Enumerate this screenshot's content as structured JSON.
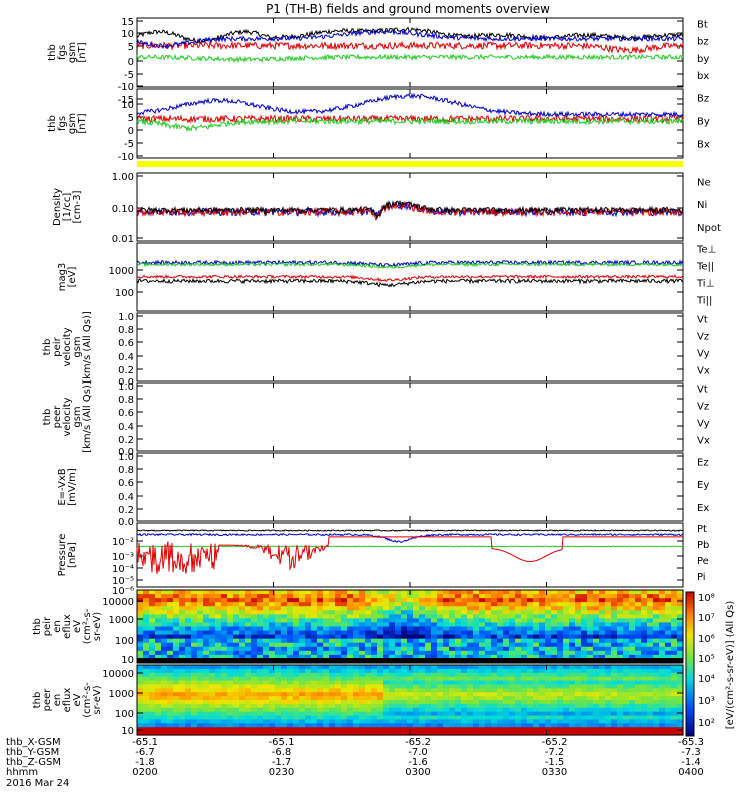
{
  "title": "P1 (TH-B) fields and ground moments overview",
  "colors": {
    "black": "#000000",
    "red": "#e00000",
    "green": "#22cc22",
    "blue": "#0000cc",
    "yellow": "#ffff00"
  },
  "chart_data": [
    {
      "type": "line",
      "id": "p1",
      "ylabel": [
        "thb",
        "fgs",
        "gsm",
        "[nT]"
      ],
      "yticks": [
        "15",
        "10",
        "5",
        "0",
        "-5",
        "-10",
        "-15"
      ],
      "ylim": [
        -15,
        15
      ],
      "legend": [
        {
          "text": "Bt",
          "color": "#000000"
        },
        {
          "text": "bz",
          "color": "#e00000"
        },
        {
          "text": "by",
          "color": "#22cc22"
        },
        {
          "text": "bx",
          "color": "#0000cc"
        }
      ]
    },
    {
      "type": "line",
      "id": "p2",
      "ylabel": [
        "thb",
        "fgs",
        "gsm",
        "[nT]"
      ],
      "yticks": [
        "10",
        "5",
        "0",
        "-5",
        "-10"
      ],
      "ylim": [
        -15,
        15
      ],
      "legend": [
        {
          "text": "Bz",
          "color": "#e00000"
        },
        {
          "text": "By",
          "color": "#22cc22"
        },
        {
          "text": "Bx",
          "color": "#0000cc"
        }
      ]
    },
    {
      "type": "line",
      "id": "p3",
      "scale": "log",
      "ylabel": [
        "Density",
        "[1/cc]",
        "[cm-3]"
      ],
      "yticks": [
        "1.00",
        "0.10",
        "0.01"
      ],
      "legend": [
        {
          "text": "Ne",
          "color": "#e00000"
        },
        {
          "text": "Ni",
          "color": "#000000"
        },
        {
          "text": "Npot",
          "color": "#0000cc"
        }
      ]
    },
    {
      "type": "line",
      "id": "p4",
      "scale": "log",
      "ylabel": [
        "mag3",
        "[eV]"
      ],
      "yticks": [
        "1000",
        "100"
      ],
      "legend": [
        {
          "text": "Te⊥",
          "color": "#e00000"
        },
        {
          "text": "Te||",
          "color": "#000000"
        },
        {
          "text": "Ti⊥",
          "color": "#0000cc"
        },
        {
          "text": "Ti||",
          "color": "#22cc22"
        }
      ]
    },
    {
      "type": "line",
      "id": "p5",
      "ylabel": [
        "thb",
        "peir",
        "velocity",
        "gsm",
        "[km/s (All Qs)]"
      ],
      "yticks": [
        "1.0",
        "0.8",
        "0.6",
        "0.4",
        "0.2",
        "0.0"
      ],
      "legend": [
        {
          "text": "Vt",
          "color": "#000000"
        },
        {
          "text": "Vz",
          "color": "#e00000"
        },
        {
          "text": "Vy",
          "color": "#22cc22"
        },
        {
          "text": "Vx",
          "color": "#0000cc"
        }
      ]
    },
    {
      "type": "line",
      "id": "p6",
      "ylabel": [
        "thb",
        "peer",
        "velocity",
        "gsm",
        "[km/s (All Qs)]"
      ],
      "yticks": [
        "1.0",
        "0.8",
        "0.6",
        "0.4",
        "0.2",
        "0.0"
      ],
      "legend": [
        {
          "text": "Vt",
          "color": "#000000"
        },
        {
          "text": "Vz",
          "color": "#e00000"
        },
        {
          "text": "Vy",
          "color": "#22cc22"
        },
        {
          "text": "Vx",
          "color": "#0000cc"
        }
      ]
    },
    {
      "type": "line",
      "id": "p7",
      "ylabel": [
        "E=-VxB",
        "[mV/m]"
      ],
      "yticks": [
        "1.0",
        "0.8",
        "0.6",
        "0.4",
        "0.2",
        "0.0"
      ],
      "legend": [
        {
          "text": "Ez",
          "color": "#e00000"
        },
        {
          "text": "Ey",
          "color": "#22cc22"
        },
        {
          "text": "Ex",
          "color": "#0000cc"
        }
      ]
    },
    {
      "type": "line",
      "id": "p8",
      "scale": "log",
      "ylabel": [
        "Pressure",
        "[nPa]"
      ],
      "yticks": [
        "10⁻²",
        "10⁻³",
        "10⁻⁴",
        "10⁻⁵",
        "10⁻⁶"
      ],
      "legend": [
        {
          "text": "Pt",
          "color": "#000000"
        },
        {
          "text": "Pb",
          "color": "#e00000"
        },
        {
          "text": "Pe",
          "color": "#22cc22"
        },
        {
          "text": "Pi",
          "color": "#0000cc"
        }
      ]
    },
    {
      "type": "heatmap",
      "id": "p9",
      "ylabel": [
        "thb",
        "peir",
        "en",
        "eflux",
        "eV",
        "(cm²-s-",
        "sr-eV)"
      ],
      "yticks": [
        "10000",
        "1000",
        "100",
        "10"
      ]
    },
    {
      "type": "heatmap",
      "id": "p10",
      "ylabel": [
        "thb",
        "peer",
        "en",
        "eflux",
        "eV",
        "(cm²-s-",
        "sr-eV)"
      ],
      "yticks": [
        "10000",
        "1000",
        "100",
        "10"
      ]
    }
  ],
  "colorbar": {
    "ticks": [
      "10⁸",
      "10⁷",
      "10⁶",
      "10⁵",
      "10⁴",
      "10³",
      "10²"
    ],
    "label": "[eV/(cm²-s-sr-eV)] (All Qs)"
  },
  "ephemeris": {
    "labels": [
      "thb_X-GSM",
      "thb_Y-GSM",
      "thb_Z-GSM",
      "hhmm",
      "2016 Mar 24"
    ],
    "columns": [
      [
        "-65.1",
        "-6.7",
        "-1.8",
        "0200"
      ],
      [
        "-65.1",
        "-6.8",
        "-1.7",
        "0230"
      ],
      [
        "-65.2",
        "-7.0",
        "-1.6",
        "0300"
      ],
      [
        "-65.2",
        "-7.2",
        "-1.5",
        "0330"
      ],
      [
        "-65.3",
        "-7.3",
        "-1.4",
        "0400"
      ]
    ]
  }
}
